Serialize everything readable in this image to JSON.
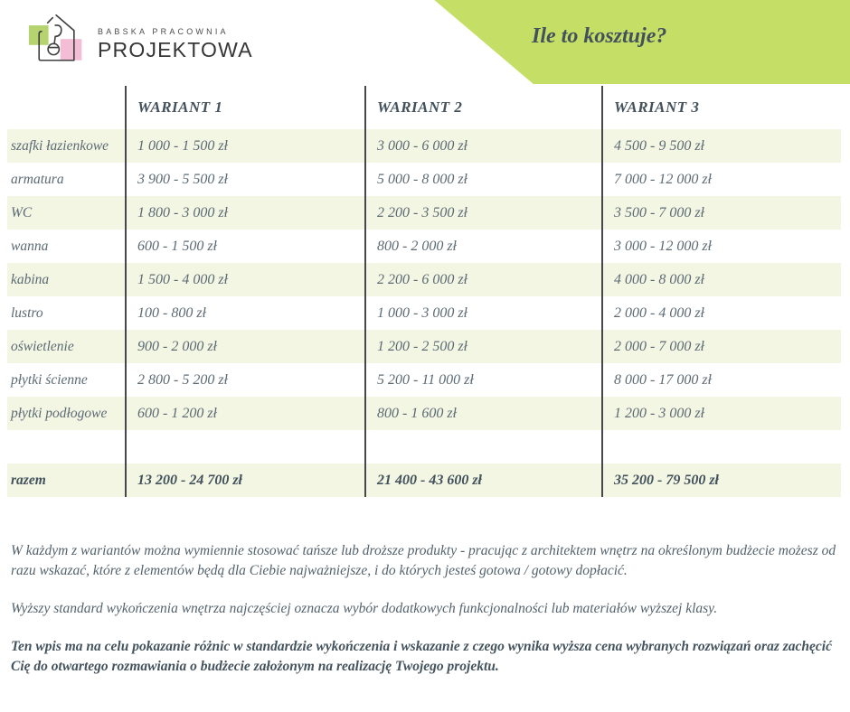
{
  "logo": {
    "top_line": "BABSKA PRACOWNIA",
    "bottom_line": "PROJEKTOWA"
  },
  "banner": {
    "title": "Ile to kosztuje?"
  },
  "colors": {
    "banner_green": "#c5df66",
    "row_cream": "#f4f6e4",
    "separator_line": "#44484c",
    "heading_text": "#42515b",
    "value_text": "#5c6a74",
    "logo_green_square": "#b5d36e",
    "logo_pink_square": "#f2bdd5"
  },
  "table": {
    "columns": [
      "WARIANT 1",
      "WARIANT 2",
      "WARIANT 3"
    ],
    "rows": [
      {
        "label": "szafki łazienkowe",
        "values": [
          "1 000 - 1 500 zł",
          "3 000 - 6 000 zł",
          "4 500 - 9 500 zł"
        ]
      },
      {
        "label": "armatura",
        "values": [
          "3 900 - 5 500 zł",
          "5 000 - 8 000 zł",
          "7 000 - 12 000 zł"
        ]
      },
      {
        "label": "WC",
        "values": [
          "1 800 - 3 000 zł",
          "2 200 - 3 500 zł",
          "3 500 - 7 000 zł"
        ]
      },
      {
        "label": "wanna",
        "values": [
          "600 - 1 500 zł",
          "800 - 2 000 zł",
          "3 000 - 12 000 zł"
        ]
      },
      {
        "label": "kabina",
        "values": [
          "1 500 - 4 000 zł",
          "2 200 - 6 000 zł",
          "4 000 - 8 000 zł"
        ]
      },
      {
        "label": "lustro",
        "values": [
          "100 - 800 zł",
          "1 000 - 3 000 zł",
          "2 000 - 4 000 zł"
        ]
      },
      {
        "label": "oświetlenie",
        "values": [
          "900 - 2 000 zł",
          "1 200 - 2 500 zł",
          "2 000 - 7 000 zł"
        ]
      },
      {
        "label": "płytki ścienne",
        "values": [
          "2 800 - 5 200 zł",
          "5 200 - 11 000 zł",
          "8 000 - 17 000 zł"
        ]
      },
      {
        "label": "płytki podłogowe",
        "values": [
          "600 - 1 200 zł",
          "800 - 1 600 zł",
          "1 200 - 3 000 zł"
        ]
      },
      {
        "label": "",
        "values": [
          "",
          "",
          ""
        ]
      }
    ],
    "total": {
      "label": "razem",
      "values": [
        "13 200 - 24 700 zł",
        "21 400 - 43 600 zł",
        "35 200 - 79 500 zł"
      ]
    }
  },
  "paragraphs": [
    {
      "text": "W każdym z wariantów można wymiennie stosować tańsze lub droższe produkty - pracując z architektem wnętrz na określonym budżecie możesz od razu wskazać, które z elementów będą dla Ciebie najważniejsze, i do których jesteś gotowa / gotowy dopłacić.",
      "bold": false
    },
    {
      "text": "Wyższy standard wykończenia wnętrza najczęściej oznacza wybór dodatkowych funkcjonalności lub materiałów wyższej klasy.",
      "bold": false
    },
    {
      "text": "Ten wpis ma na celu pokazanie różnic w standardzie wykończenia i wskazanie z czego wynika wyższa cena wybranych rozwiązań oraz zachęcić Cię do otwartego rozmawiania o budżecie założonym na realizację Twojego projektu.",
      "bold": true
    }
  ]
}
